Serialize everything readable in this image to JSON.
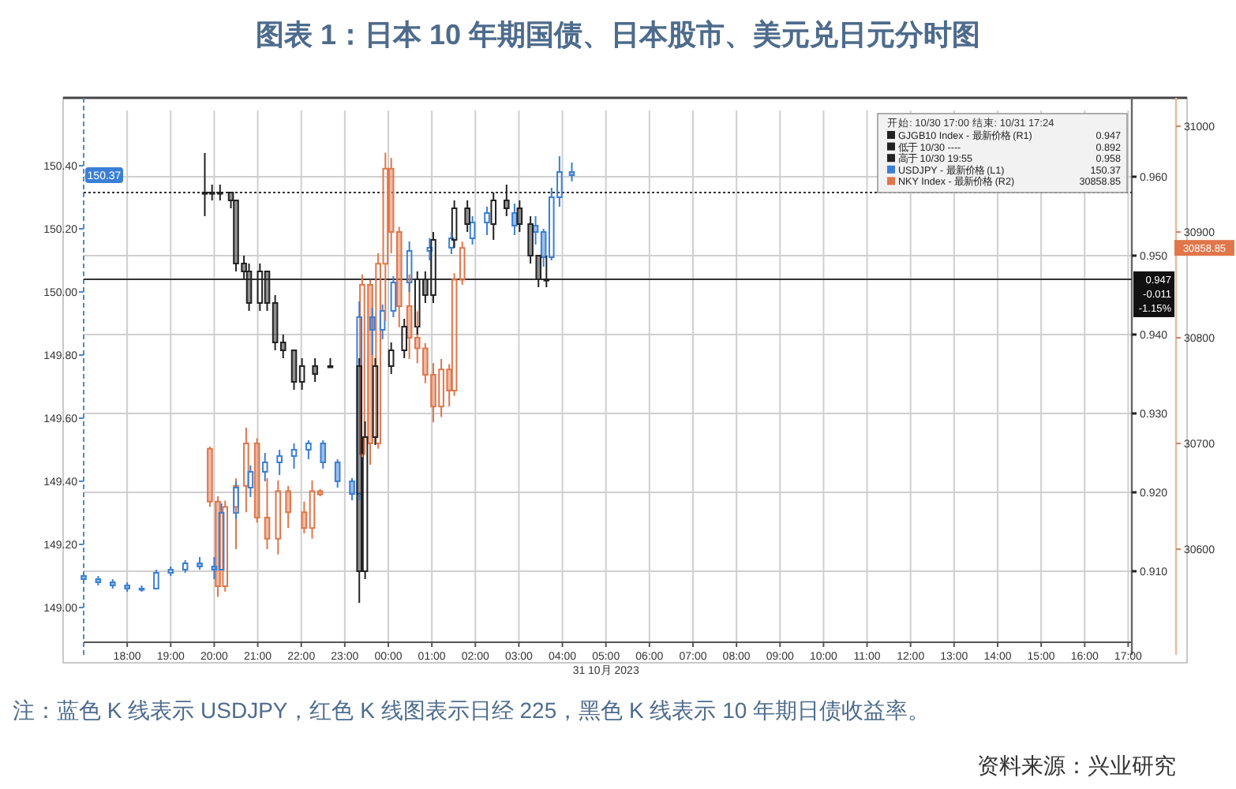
{
  "chart_data": {
    "type": "candlestick",
    "title": "图表 1：日本 10 年期国债、日本股市、美元兑日元分时图",
    "xlim": [
      "2023-10-30T17:00",
      "2023-10-31T17:05"
    ],
    "xticks": [
      {
        "value": "2023-10-30T18:00",
        "label": "18:00"
      },
      {
        "value": "2023-10-30T19:00",
        "label": "19:00"
      },
      {
        "value": "2023-10-30T20:00",
        "label": "20:00"
      },
      {
        "value": "2023-10-30T21:00",
        "label": "21:00"
      },
      {
        "value": "2023-10-30T22:00",
        "label": "22:00"
      },
      {
        "value": "2023-10-30T23:00",
        "label": "23:00"
      },
      {
        "value": "2023-10-31T00:00",
        "label": "00:00"
      },
      {
        "value": "2023-10-31T01:00",
        "label": "01:00"
      },
      {
        "value": "2023-10-31T02:00",
        "label": "02:00"
      },
      {
        "value": "2023-10-31T03:00",
        "label": "03:00"
      },
      {
        "value": "2023-10-31T04:00",
        "label": "04:00"
      },
      {
        "value": "2023-10-31T05:00",
        "label": "05:00"
      },
      {
        "value": "2023-10-31T06:00",
        "label": "06:00"
      },
      {
        "value": "2023-10-31T07:00",
        "label": "07:00"
      },
      {
        "value": "2023-10-31T08:00",
        "label": "08:00"
      },
      {
        "value": "2023-10-31T09:00",
        "label": "09:00"
      },
      {
        "value": "2023-10-31T10:00",
        "label": "10:00"
      },
      {
        "value": "2023-10-31T11:00",
        "label": "11:00"
      },
      {
        "value": "2023-10-31T12:00",
        "label": "12:00"
      },
      {
        "value": "2023-10-31T13:00",
        "label": "13:00"
      },
      {
        "value": "2023-10-31T14:00",
        "label": "14:00"
      },
      {
        "value": "2023-10-31T15:00",
        "label": "15:00"
      },
      {
        "value": "2023-10-31T16:00",
        "label": "16:00"
      },
      {
        "value": "2023-10-31T17:00",
        "label": "17:00"
      }
    ],
    "ylim": [
      148.89,
      150.575
    ],
    "yticks": [
      {
        "value": 149,
        "label": "149.00"
      },
      {
        "value": 149.2,
        "label": "149.20"
      },
      {
        "value": 149.4,
        "label": "149.40"
      },
      {
        "value": 149.6,
        "label": "149.60"
      },
      {
        "value": 149.8,
        "label": "149.80"
      },
      {
        "value": 150,
        "label": "150.00"
      },
      {
        "value": 150.2,
        "label": "150.20"
      },
      {
        "value": 150.4,
        "label": "150.40"
      }
    ],
    "y2lim": [
      0.901,
      0.9684
    ],
    "y2ticks": [
      {
        "value": 0.91,
        "label": "0.910"
      },
      {
        "value": 0.92,
        "label": "0.920"
      },
      {
        "value": 0.93,
        "label": "0.930"
      },
      {
        "value": 0.94,
        "label": "0.940"
      },
      {
        "value": 0.95,
        "label": "0.950"
      },
      {
        "value": 0.96,
        "label": "0.960"
      }
    ],
    "y3lim": [
      30512,
      31015
    ],
    "y3ticks": [
      30600,
      30700,
      30800,
      30900,
      31000
    ],
    "grid": true,
    "legend": "top right",
    "ref_lines": [
      {
        "axis": "y2",
        "value": 0.958,
        "line_style": "dotted",
        "color": "#333333"
      },
      {
        "axis": "y2",
        "value": 0.947,
        "line_style": "solid",
        "color": "#333333"
      }
    ],
    "series": [
      {
        "name": "GJGB10 Index - 最新价格 (R1)",
        "color": "#222222",
        "axis": "y2",
        "x": [
          "2023-10-30T19:47",
          "2023-10-30T19:57",
          "2023-10-30T20:08",
          "2023-10-30T20:23",
          "2023-10-30T20:30",
          "2023-10-30T20:41",
          "2023-10-30T20:48",
          "2023-10-30T21:03",
          "2023-10-30T21:13",
          "2023-10-30T21:24",
          "2023-10-30T21:35",
          "2023-10-30T21:50",
          "2023-10-30T22:01",
          "2023-10-30T22:19",
          "2023-10-30T22:40",
          "2023-10-30T23:20",
          "2023-10-30T23:28",
          "2023-10-30T23:42",
          "2023-10-31T00:04",
          "2023-10-31T00:22",
          "2023-10-31T00:40",
          "2023-10-31T00:51",
          "2023-10-31T01:02",
          "2023-10-31T01:31",
          "2023-10-31T01:49",
          "2023-10-31T02:25",
          "2023-10-31T02:43",
          "2023-10-31T03:01",
          "2023-10-31T03:16",
          "2023-10-31T03:27",
          "2023-10-31T03:38"
        ],
        "ohlc": [
          [
            0.958,
            0.963,
            0.955,
            0.958
          ],
          [
            0.958,
            0.959,
            0.957,
            0.958
          ],
          [
            0.958,
            0.959,
            0.957,
            0.958
          ],
          [
            0.958,
            0.958,
            0.956,
            0.957
          ],
          [
            0.957,
            0.957,
            0.948,
            0.949
          ],
          [
            0.949,
            0.95,
            0.947,
            0.948
          ],
          [
            0.948,
            0.949,
            0.943,
            0.944
          ],
          [
            0.944,
            0.949,
            0.943,
            0.948
          ],
          [
            0.948,
            0.948,
            0.943,
            0.944
          ],
          [
            0.944,
            0.945,
            0.938,
            0.939
          ],
          [
            0.939,
            0.94,
            0.937,
            0.938
          ],
          [
            0.938,
            0.938,
            0.933,
            0.934
          ],
          [
            0.934,
            0.937,
            0.933,
            0.936
          ],
          [
            0.936,
            0.937,
            0.934,
            0.935
          ],
          [
            0.936,
            0.937,
            0.936,
            0.936
          ],
          [
            0.936,
            0.937,
            0.906,
            0.91
          ],
          [
            0.91,
            0.929,
            0.909,
            0.927
          ],
          [
            0.927,
            0.937,
            0.926,
            0.936
          ],
          [
            0.936,
            0.939,
            0.935,
            0.938
          ],
          [
            0.938,
            0.942,
            0.937,
            0.941
          ],
          [
            0.941,
            0.948,
            0.94,
            0.947
          ],
          [
            0.947,
            0.948,
            0.944,
            0.945
          ],
          [
            0.945,
            0.953,
            0.944,
            0.952
          ],
          [
            0.952,
            0.957,
            0.951,
            0.956
          ],
          [
            0.956,
            0.957,
            0.953,
            0.954
          ],
          [
            0.954,
            0.958,
            0.952,
            0.957
          ],
          [
            0.957,
            0.959,
            0.955,
            0.956
          ],
          [
            0.956,
            0.957,
            0.953,
            0.954
          ],
          [
            0.954,
            0.955,
            0.949,
            0.95
          ],
          [
            0.95,
            0.95,
            0.946,
            0.947
          ],
          [
            0.947,
            0.95,
            0.946,
            0.947
          ]
        ]
      },
      {
        "name": "USDJPY - 最新价格 (L1)",
        "color": "#3a7fd5",
        "axis": "y",
        "x": [
          "2023-10-30T17:00",
          "2023-10-30T17:20",
          "2023-10-30T17:40",
          "2023-10-30T18:00",
          "2023-10-30T18:20",
          "2023-10-30T18:40",
          "2023-10-30T19:00",
          "2023-10-30T19:20",
          "2023-10-30T19:40",
          "2023-10-30T20:00",
          "2023-10-30T20:10",
          "2023-10-30T20:30",
          "2023-10-30T20:50",
          "2023-10-30T21:10",
          "2023-10-30T21:30",
          "2023-10-30T21:50",
          "2023-10-30T22:10",
          "2023-10-30T22:30",
          "2023-10-30T22:50",
          "2023-10-30T23:10",
          "2023-10-30T23:20",
          "2023-10-30T23:38",
          "2023-10-30T23:52",
          "2023-10-31T00:07",
          "2023-10-31T00:29",
          "2023-10-31T00:57",
          "2023-10-31T01:27",
          "2023-10-31T01:56",
          "2023-10-31T02:16",
          "2023-10-31T02:54",
          "2023-10-31T03:23",
          "2023-10-31T03:34",
          "2023-10-31T03:45",
          "2023-10-31T03:56",
          "2023-10-31T04:13"
        ],
        "ohlc": [
          [
            149.1,
            149.11,
            149.08,
            149.09
          ],
          [
            149.09,
            149.1,
            149.07,
            149.08
          ],
          [
            149.08,
            149.09,
            149.06,
            149.07
          ],
          [
            149.07,
            149.08,
            149.05,
            149.06
          ],
          [
            149.06,
            149.07,
            149.05,
            149.06
          ],
          [
            149.06,
            149.12,
            149.06,
            149.11
          ],
          [
            149.11,
            149.13,
            149.1,
            149.12
          ],
          [
            149.12,
            149.15,
            149.11,
            149.14
          ],
          [
            149.14,
            149.16,
            149.12,
            149.13
          ],
          [
            149.13,
            149.16,
            149.09,
            149.12
          ],
          [
            149.12,
            149.33,
            149.12,
            149.3
          ],
          [
            149.3,
            149.4,
            149.28,
            149.38
          ],
          [
            149.38,
            149.45,
            149.35,
            149.43
          ],
          [
            149.43,
            149.49,
            149.4,
            149.46
          ],
          [
            149.46,
            149.5,
            149.42,
            149.48
          ],
          [
            149.48,
            149.52,
            149.44,
            149.5
          ],
          [
            149.5,
            149.53,
            149.47,
            149.52
          ],
          [
            149.52,
            149.53,
            149.44,
            149.46
          ],
          [
            149.46,
            149.47,
            149.38,
            149.4
          ],
          [
            149.4,
            149.41,
            149.34,
            149.36
          ],
          [
            149.36,
            149.97,
            149.34,
            149.92
          ],
          [
            149.92,
            149.95,
            149.8,
            149.88
          ],
          [
            149.88,
            149.96,
            149.85,
            149.94
          ],
          [
            149.94,
            150.05,
            149.92,
            150.03
          ],
          [
            150.03,
            150.16,
            150,
            150.13
          ],
          [
            150.13,
            150.17,
            150.1,
            150.14
          ],
          [
            150.14,
            150.19,
            150.12,
            150.17
          ],
          [
            150.17,
            150.24,
            150.15,
            150.22
          ],
          [
            150.22,
            150.27,
            150.18,
            150.25
          ],
          [
            150.25,
            150.28,
            150.18,
            150.21
          ],
          [
            150.21,
            150.24,
            150.15,
            150.19
          ],
          [
            150.19,
            150.2,
            150.08,
            150.11
          ],
          [
            150.11,
            150.33,
            150.1,
            150.3
          ],
          [
            150.3,
            150.43,
            150.27,
            150.38
          ],
          [
            150.38,
            150.41,
            150.35,
            150.37
          ]
        ]
      },
      {
        "name": "NKY Index - 最新价格 (R2)",
        "color": "#e0764a",
        "axis": "y3",
        "x": [
          "2023-10-30T19:54",
          "2023-10-30T20:05",
          "2023-10-30T20:15",
          "2023-10-30T20:30",
          "2023-10-30T20:44",
          "2023-10-30T20:59",
          "2023-10-30T21:13",
          "2023-10-30T21:28",
          "2023-10-30T21:42",
          "2023-10-30T22:04",
          "2023-10-30T22:15",
          "2023-10-30T22:26",
          "2023-10-30T23:24",
          "2023-10-30T23:35",
          "2023-10-30T23:46",
          "2023-10-30T23:56",
          "2023-10-31T00:04",
          "2023-10-31T00:15",
          "2023-10-31T00:29",
          "2023-10-31T00:40",
          "2023-10-31T00:51",
          "2023-10-31T01:02",
          "2023-10-31T01:13",
          "2023-10-31T01:24",
          "2023-10-31T01:31",
          "2023-10-31T01:42"
        ],
        "ohlc": [
          [
            30695,
            30697,
            30640,
            30645
          ],
          [
            30645,
            30650,
            30555,
            30565
          ],
          [
            30565,
            30646,
            30560,
            30640
          ],
          [
            30640,
            30667,
            30600,
            30660
          ],
          [
            30660,
            30715,
            30635,
            30700
          ],
          [
            30700,
            30705,
            30625,
            30630
          ],
          [
            30630,
            30667,
            30600,
            30610
          ],
          [
            30610,
            30665,
            30595,
            30655
          ],
          [
            30655,
            30660,
            30620,
            30635
          ],
          [
            30635,
            30645,
            30615,
            30620
          ],
          [
            30620,
            30665,
            30610,
            30655
          ],
          [
            30655,
            30657,
            30650,
            30652
          ],
          [
            30690,
            30860,
            30687,
            30850
          ],
          [
            30850,
            30855,
            30680,
            30700
          ],
          [
            30700,
            30880,
            30695,
            30870
          ],
          [
            30870,
            30975,
            30816,
            30960
          ],
          [
            30960,
            30970,
            30880,
            30900
          ],
          [
            30900,
            30905,
            30810,
            30830
          ],
          [
            30830,
            30860,
            30780,
            30800
          ],
          [
            30800,
            30825,
            30776,
            30790
          ],
          [
            30790,
            30795,
            30757,
            30765
          ],
          [
            30765,
            30776,
            30720,
            30735
          ],
          [
            30735,
            30780,
            30725,
            30770
          ],
          [
            30770,
            30775,
            30735,
            30750
          ],
          [
            30750,
            30861,
            30745,
            30855
          ],
          [
            30855,
            30891,
            30850,
            30885
          ]
        ]
      }
    ],
    "annotations": [
      "开始: 10/30 17:00 结束: 10/31 17:24",
      "低于 10/30 ----",
      "0.892",
      "高于 10/30 19:55",
      "0.958",
      "0.947",
      "150.37",
      "30858.85",
      "150.37",
      "0.947",
      "-0.011",
      "-1.15%",
      "30858.85",
      "31 10月 2023",
      "注：蓝色 K 线表示 USDJPY，红色 K 线图表示日经 225，黑色 K 线表示 10 年期日债收益率。",
      "资料来源：兴业研究"
    ]
  }
}
